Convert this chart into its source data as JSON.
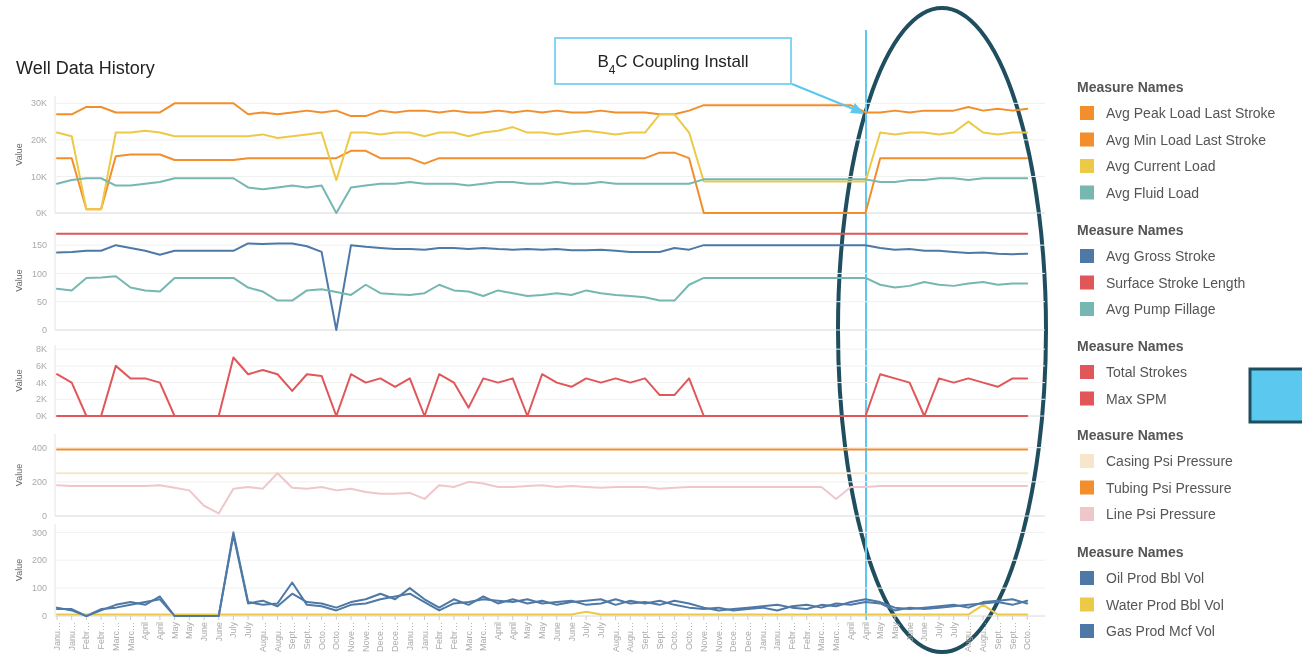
{
  "chart_data": [
    {
      "type": "line",
      "title": "Well Data History",
      "ylabel": "Value",
      "legend_title": "Measure Names",
      "legend": "right",
      "grid": "y",
      "tick_labels": "y",
      "categories": [
        null,
        null,
        null,
        null,
        null,
        null,
        null,
        null,
        null,
        null,
        null,
        null,
        null,
        null,
        null,
        null,
        null,
        null,
        null,
        null,
        null,
        null,
        null,
        null,
        null,
        null,
        null,
        null,
        null,
        null,
        null,
        null,
        null,
        null,
        null,
        null,
        null,
        null,
        null,
        null,
        null,
        null,
        null,
        null,
        null,
        null,
        null,
        null,
        null,
        null,
        null,
        null,
        null,
        null,
        null,
        null,
        null,
        null,
        null,
        null,
        null,
        null,
        null,
        null,
        null,
        null,
        null
      ],
      "ylim": [
        0,
        32000
      ],
      "yticks": [
        {
          "value": 0,
          "label": "0K"
        },
        {
          "value": 10000,
          "label": "10K"
        },
        {
          "value": 20000,
          "label": "20K"
        },
        {
          "value": 30000,
          "label": "30K"
        }
      ],
      "annotations": [
        "B$_{4}$C Coupling Install"
      ],
      "series": [
        {
          "name": "Avg Peak Load Last Stroke",
          "color": "#f28e2b",
          "values": [
            27000,
            27000,
            29000,
            29000,
            27500,
            27500,
            27500,
            27500,
            30000,
            30000,
            30000,
            30000,
            30000,
            27000,
            27500,
            27000,
            27500,
            28000,
            27500,
            28000,
            26500,
            26500,
            28000,
            27500,
            28000,
            28000,
            27500,
            28000,
            27500,
            27500,
            28000,
            27500,
            28000,
            27500,
            28000,
            27500,
            27500,
            28000,
            27500,
            27500,
            27500,
            27000,
            27000,
            28000,
            29500,
            29500,
            29500,
            29500,
            29500,
            29500,
            29500,
            29500,
            29500,
            29500,
            29500,
            27500,
            27500,
            28000,
            27500,
            28000,
            28000,
            28000,
            29000,
            28000,
            28500,
            28000,
            28500
          ]
        },
        {
          "name": "Avg Min Load Last Stroke",
          "color": "#f28e2b",
          "values": [
            15000,
            15000,
            1000,
            1000,
            15500,
            16000,
            16000,
            16000,
            14500,
            14500,
            14500,
            14500,
            14500,
            15000,
            15000,
            15000,
            15000,
            15000,
            15000,
            15000,
            17000,
            17000,
            15000,
            15000,
            15000,
            13500,
            15000,
            15000,
            15000,
            15000,
            15000,
            15000,
            15000,
            15000,
            15000,
            15000,
            15000,
            15000,
            15000,
            15000,
            15000,
            16500,
            16500,
            15000,
            0,
            0,
            0,
            0,
            0,
            0,
            0,
            0,
            0,
            0,
            0,
            0,
            15000,
            15000,
            15000,
            15000,
            15000,
            15000,
            15000,
            15000,
            15000,
            15000,
            15000
          ]
        },
        {
          "name": "Avg Current Load",
          "color": "#edc948",
          "values": [
            22000,
            21000,
            1000,
            1000,
            22000,
            22000,
            22500,
            22000,
            21000,
            21000,
            21000,
            21000,
            21000,
            21000,
            21500,
            20500,
            21000,
            21500,
            22000,
            9000,
            22000,
            22000,
            21500,
            22000,
            22000,
            21000,
            22000,
            22000,
            21000,
            22000,
            22500,
            23500,
            22000,
            22000,
            21500,
            22000,
            22500,
            22000,
            21500,
            22000,
            22000,
            27000,
            27000,
            22000,
            8600,
            8600,
            8600,
            8600,
            8600,
            8600,
            8600,
            8600,
            8600,
            8600,
            8600,
            8600,
            22000,
            21500,
            22000,
            22000,
            21500,
            22000,
            25000,
            22000,
            21500,
            22000,
            22000
          ]
        },
        {
          "name": "Avg Fluid Load",
          "color": "#76b7b2",
          "values": [
            8000,
            9000,
            9500,
            9500,
            7500,
            7500,
            8000,
            8500,
            9500,
            9500,
            9500,
            9500,
            9500,
            7000,
            6500,
            7000,
            7500,
            7000,
            7500,
            0,
            7000,
            7500,
            8000,
            8000,
            8500,
            8000,
            8000,
            8000,
            7500,
            8000,
            8500,
            8500,
            8000,
            8000,
            8500,
            8000,
            8000,
            8500,
            8000,
            8000,
            8000,
            8000,
            8000,
            8000,
            9200,
            9200,
            9200,
            9200,
            9200,
            9200,
            9200,
            9200,
            9200,
            9200,
            9200,
            9200,
            8500,
            8500,
            9000,
            9000,
            9500,
            9500,
            9000,
            9500,
            9500,
            9500,
            9500
          ]
        }
      ]
    },
    {
      "type": "line",
      "ylabel": "Value",
      "legend_title": "Measure Names",
      "legend": "right",
      "grid": "y",
      "tick_labels": "y",
      "categories": [
        null,
        null,
        null,
        null,
        null,
        null,
        null,
        null,
        null,
        null,
        null,
        null,
        null,
        null,
        null,
        null,
        null,
        null,
        null,
        null,
        null,
        null,
        null,
        null,
        null,
        null,
        null,
        null,
        null,
        null,
        null,
        null,
        null,
        null,
        null,
        null,
        null,
        null,
        null,
        null,
        null,
        null,
        null,
        null,
        null,
        null,
        null,
        null,
        null,
        null,
        null,
        null,
        null,
        null,
        null,
        null,
        null,
        null,
        null,
        null,
        null,
        null,
        null,
        null,
        null,
        null,
        null
      ],
      "ylim": [
        0,
        175
      ],
      "yticks": [
        0,
        50,
        100,
        150
      ],
      "series": [
        {
          "name": "Avg Gross Stroke",
          "color": "#4e79a7",
          "values": [
            137,
            138,
            140,
            140,
            150,
            145,
            140,
            133,
            140,
            140,
            140,
            140,
            140,
            153,
            152,
            153,
            153,
            148,
            138,
            0,
            150,
            147,
            145,
            143,
            143,
            142,
            145,
            145,
            143,
            145,
            143,
            142,
            143,
            142,
            143,
            141,
            141,
            142,
            140,
            138,
            138,
            138,
            145,
            142,
            150,
            150,
            150,
            150,
            150,
            150,
            150,
            150,
            150,
            150,
            150,
            150,
            145,
            142,
            143,
            140,
            140,
            138,
            136,
            137,
            135,
            134,
            135
          ]
        },
        {
          "name": "Surface Stroke Length",
          "color": "#e15759",
          "values": [
            170,
            170,
            170,
            170,
            170,
            170,
            170,
            170,
            170,
            170,
            170,
            170,
            170,
            170,
            170,
            170,
            170,
            170,
            170,
            170,
            170,
            170,
            170,
            170,
            170,
            170,
            170,
            170,
            170,
            170,
            170,
            170,
            170,
            170,
            170,
            170,
            170,
            170,
            170,
            170,
            170,
            170,
            170,
            170,
            170,
            170,
            170,
            170,
            170,
            170,
            170,
            170,
            170,
            170,
            170,
            170,
            170,
            170,
            170,
            170,
            170,
            170,
            170,
            170,
            170,
            170,
            170
          ]
        },
        {
          "name": "Avg Pump Fillage",
          "color": "#76b7b2",
          "values": [
            73,
            70,
            92,
            93,
            95,
            75,
            70,
            68,
            92,
            92,
            92,
            92,
            92,
            75,
            68,
            52,
            52,
            70,
            72,
            67,
            62,
            80,
            65,
            63,
            62,
            65,
            80,
            70,
            68,
            60,
            70,
            65,
            60,
            62,
            65,
            62,
            70,
            65,
            62,
            60,
            58,
            52,
            52,
            80,
            92,
            92,
            92,
            92,
            92,
            92,
            92,
            92,
            92,
            92,
            92,
            92,
            80,
            75,
            78,
            85,
            80,
            78,
            82,
            85,
            80,
            82,
            82
          ]
        }
      ]
    },
    {
      "type": "line",
      "ylabel": "Value",
      "legend_title": "Measure Names",
      "legend": "right",
      "grid": "y",
      "tick_labels": "y",
      "categories": [
        null,
        null,
        null,
        null,
        null,
        null,
        null,
        null,
        null,
        null,
        null,
        null,
        null,
        null,
        null,
        null,
        null,
        null,
        null,
        null,
        null,
        null,
        null,
        null,
        null,
        null,
        null,
        null,
        null,
        null,
        null,
        null,
        null,
        null,
        null,
        null,
        null,
        null,
        null,
        null,
        null,
        null,
        null,
        null,
        null,
        null,
        null,
        null,
        null,
        null,
        null,
        null,
        null,
        null,
        null,
        null,
        null,
        null,
        null,
        null,
        null,
        null,
        null,
        null,
        null,
        null,
        null
      ],
      "ylim": [
        0,
        8500
      ],
      "yticks": [
        {
          "value": 0,
          "label": "0K"
        },
        {
          "value": 2000,
          "label": "2K"
        },
        {
          "value": 4000,
          "label": "4K"
        },
        {
          "value": 6000,
          "label": "6K"
        },
        {
          "value": 8000,
          "label": "8K"
        }
      ],
      "series": [
        {
          "name": "Total Strokes",
          "color": "#e15759",
          "values": [
            5000,
            4000,
            0,
            0,
            6000,
            4500,
            4500,
            4000,
            0,
            0,
            0,
            0,
            7000,
            5000,
            5500,
            5000,
            3000,
            5000,
            4800,
            0,
            5000,
            4000,
            4500,
            3500,
            4500,
            0,
            5000,
            4000,
            1000,
            4500,
            4000,
            4500,
            0,
            5000,
            4000,
            3500,
            4500,
            4000,
            4500,
            4000,
            4500,
            2500,
            2500,
            4500,
            0,
            0,
            0,
            0,
            0,
            0,
            0,
            0,
            0,
            0,
            0,
            0,
            5000,
            4500,
            4000,
            0,
            4500,
            4000,
            4500,
            4000,
            3500,
            4500,
            4500
          ]
        },
        {
          "name": "Max SPM",
          "color": "#e15759",
          "values": [
            0,
            0,
            0,
            0,
            0,
            0,
            0,
            0,
            0,
            0,
            0,
            0,
            0,
            0,
            0,
            0,
            0,
            0,
            0,
            0,
            0,
            0,
            0,
            0,
            0,
            0,
            0,
            0,
            0,
            0,
            0,
            0,
            0,
            0,
            0,
            0,
            0,
            0,
            0,
            0,
            0,
            0,
            0,
            0,
            0,
            0,
            0,
            0,
            0,
            0,
            0,
            0,
            0,
            0,
            0,
            0,
            0,
            0,
            0,
            0,
            0,
            0,
            0,
            0,
            0,
            0,
            0
          ]
        }
      ]
    },
    {
      "type": "line",
      "ylabel": "Value",
      "legend_title": "Measure Names",
      "legend": "right",
      "grid": "y",
      "tick_labels": "y",
      "categories": [
        null,
        null,
        null,
        null,
        null,
        null,
        null,
        null,
        null,
        null,
        null,
        null,
        null,
        null,
        null,
        null,
        null,
        null,
        null,
        null,
        null,
        null,
        null,
        null,
        null,
        null,
        null,
        null,
        null,
        null,
        null,
        null,
        null,
        null,
        null,
        null,
        null,
        null,
        null,
        null,
        null,
        null,
        null,
        null,
        null,
        null,
        null,
        null,
        null,
        null,
        null,
        null,
        null,
        null,
        null,
        null,
        null,
        null,
        null,
        null,
        null,
        null,
        null,
        null,
        null,
        null,
        null
      ],
      "ylim": [
        0,
        480
      ],
      "yticks": [
        0,
        200,
        400
      ],
      "series": [
        {
          "name": "Casing Psi Pressure",
          "color": "#f5e6cc",
          "values": [
            250,
            250,
            250,
            250,
            250,
            250,
            250,
            250,
            250,
            250,
            250,
            250,
            250,
            250,
            250,
            250,
            250,
            250,
            250,
            250,
            250,
            250,
            250,
            250,
            250,
            250,
            250,
            250,
            250,
            250,
            250,
            250,
            250,
            250,
            250,
            250,
            250,
            250,
            250,
            250,
            250,
            250,
            250,
            250,
            250,
            250,
            250,
            250,
            250,
            250,
            250,
            250,
            250,
            250,
            250,
            250,
            250,
            250,
            250,
            250,
            250,
            250,
            250,
            250,
            250,
            250,
            250
          ]
        },
        {
          "name": "Tubing Psi Pressure",
          "color": "#f28e2b",
          "values": [
            390,
            390,
            390,
            390,
            390,
            390,
            390,
            390,
            390,
            390,
            390,
            390,
            390,
            390,
            390,
            390,
            390,
            390,
            390,
            390,
            390,
            390,
            390,
            390,
            390,
            390,
            390,
            390,
            390,
            390,
            390,
            390,
            390,
            390,
            390,
            390,
            390,
            390,
            390,
            390,
            390,
            390,
            390,
            390,
            390,
            390,
            390,
            390,
            390,
            390,
            390,
            390,
            390,
            390,
            390,
            390,
            390,
            390,
            390,
            390,
            390,
            390,
            390,
            390,
            390,
            390,
            390
          ]
        },
        {
          "name": "Line Psi Pressure",
          "color": "#efc7cb",
          "values": [
            180,
            175,
            175,
            175,
            175,
            175,
            175,
            180,
            165,
            150,
            60,
            15,
            160,
            170,
            160,
            250,
            165,
            160,
            170,
            150,
            160,
            140,
            130,
            130,
            135,
            100,
            180,
            170,
            200,
            190,
            170,
            170,
            175,
            180,
            170,
            175,
            170,
            165,
            170,
            170,
            170,
            160,
            165,
            170,
            170,
            170,
            170,
            170,
            170,
            170,
            170,
            170,
            170,
            100,
            170,
            170,
            175,
            175,
            175,
            175,
            175,
            175,
            175,
            175,
            175,
            175,
            175
          ]
        }
      ]
    },
    {
      "type": "line",
      "ylabel": "Value",
      "legend_title": "Measure Names",
      "legend": "right",
      "grid": "y",
      "categories": [
        "Janu…",
        "Janu…",
        "Febr…",
        "Febr…",
        "Marc…",
        "Marc…",
        "April",
        "April",
        "May",
        "May",
        "June",
        "June",
        "July",
        "July",
        "Augu…",
        "Augu…",
        "Sept…",
        "Sept…",
        "Octo…",
        "Octo…",
        "Nove…",
        "Nove…",
        "Dece…",
        "Dece…",
        "Janu…",
        "Janu…",
        "Febr…",
        "Febr…",
        "Marc…",
        "Marc…",
        "April",
        "April",
        "May",
        "May",
        "June",
        "June",
        "July",
        "July",
        "Augu…",
        "Augu…",
        "Sept…",
        "Sept…",
        "Octo…",
        "Octo…",
        "Nove…",
        "Nove…",
        "Dece…",
        "Dece…",
        "Janu…",
        "Janu…",
        "Febr…",
        "Febr…",
        "Marc…",
        "Marc…",
        "April",
        "April",
        "May",
        "May",
        "June",
        "June",
        "July",
        "July",
        "Augu…",
        "Augu…",
        "Sept…",
        "Sept…",
        "Octo…"
      ],
      "ylim": [
        0,
        330
      ],
      "yticks": [
        0,
        100,
        200,
        300
      ],
      "series": [
        {
          "name": "Oil Prod Bbl Vol",
          "color": "#4e79a7",
          "values": [
            25,
            25,
            0,
            25,
            30,
            40,
            50,
            60,
            0,
            0,
            0,
            0,
            300,
            50,
            40,
            45,
            120,
            40,
            35,
            20,
            40,
            45,
            60,
            70,
            80,
            50,
            20,
            45,
            50,
            60,
            55,
            50,
            60,
            45,
            50,
            55,
            40,
            45,
            60,
            45,
            50,
            40,
            55,
            45,
            30,
            20,
            25,
            30,
            35,
            40,
            30,
            25,
            40,
            35,
            50,
            60,
            50,
            30,
            25,
            30,
            35,
            40,
            30,
            50,
            55,
            60,
            45
          ]
        },
        {
          "name": "Water Prod Bbl Vol",
          "color": "#edc948",
          "values": [
            5,
            5,
            5,
            5,
            5,
            5,
            5,
            5,
            5,
            5,
            5,
            5,
            5,
            5,
            5,
            5,
            5,
            5,
            5,
            5,
            5,
            5,
            5,
            5,
            5,
            5,
            5,
            5,
            5,
            5,
            5,
            5,
            5,
            5,
            5,
            5,
            15,
            5,
            5,
            5,
            5,
            5,
            5,
            5,
            5,
            5,
            5,
            5,
            5,
            5,
            5,
            5,
            5,
            5,
            5,
            5,
            5,
            5,
            5,
            5,
            5,
            5,
            5,
            40,
            5,
            5,
            5
          ]
        },
        {
          "name": "Gas Prod Mcf Vol",
          "color": "#4e79a7",
          "values": [
            30,
            20,
            0,
            20,
            40,
            50,
            40,
            70,
            0,
            0,
            0,
            0,
            290,
            45,
            55,
            35,
            80,
            50,
            45,
            30,
            50,
            60,
            80,
            60,
            100,
            60,
            30,
            60,
            40,
            70,
            45,
            60,
            45,
            55,
            40,
            50,
            55,
            60,
            40,
            55,
            45,
            55,
            40,
            30,
            25,
            30,
            20,
            25,
            30,
            20,
            35,
            40,
            30,
            45,
            40,
            50,
            45,
            20,
            30,
            25,
            30,
            35,
            40,
            45,
            50,
            40,
            55
          ]
        }
      ]
    }
  ]
}
